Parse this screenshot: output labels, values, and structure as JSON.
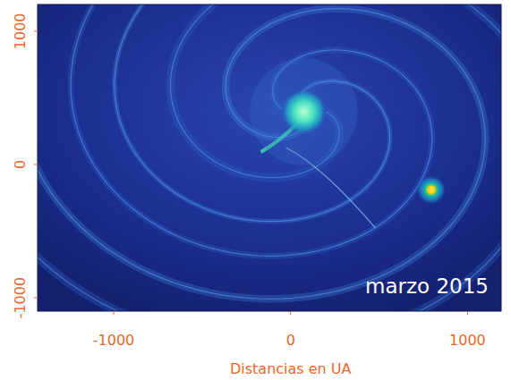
{
  "chart_data": {
    "type": "image",
    "xlabel": "Distancias en UA",
    "annotation": "marzo 2015",
    "xlim": [
      -1430,
      1190
    ],
    "ylim": [
      -1100,
      1200
    ],
    "xticks": [
      -1000,
      0,
      1000
    ],
    "yticks": [
      -1000,
      0,
      1000
    ],
    "series": [
      {
        "type": "scatter",
        "marker": "circle",
        "x": [
          75,
          795
        ],
        "values": [
          395,
          -190
        ]
      }
    ]
  }
}
